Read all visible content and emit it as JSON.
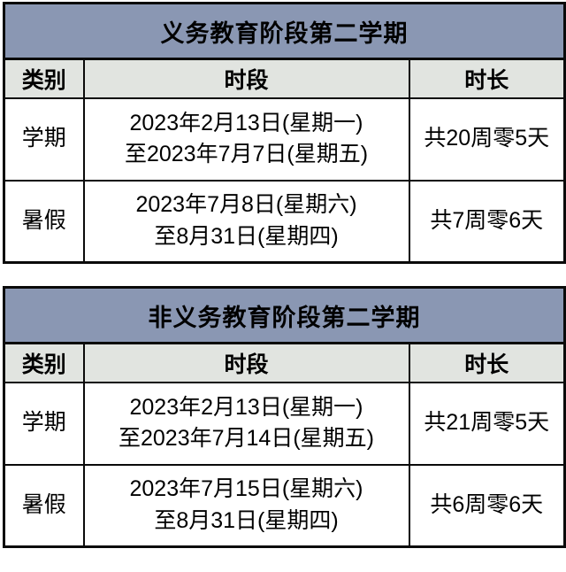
{
  "colors": {
    "title_bar_bg": "#8a97b3",
    "header_row_bg": "#e1e4e0",
    "body_bg": "#ffffff",
    "border": "#0a0a0a",
    "text": "#000000"
  },
  "tables": [
    {
      "title": "义务教育阶段第二学期",
      "columns": [
        "类别",
        "时段",
        "时长"
      ],
      "rows": [
        {
          "category": "学期",
          "period_line1": "2023年2月13日(星期一)",
          "period_line2": "至2023年7月7日(星期五)",
          "duration": "共20周零5天"
        },
        {
          "category": "暑假",
          "period_line1": "2023年7月8日(星期六)",
          "period_line2": "至8月31日(星期四)",
          "duration": "共7周零6天"
        }
      ]
    },
    {
      "title": "非义务教育阶段第二学期",
      "columns": [
        "类别",
        "时段",
        "时长"
      ],
      "rows": [
        {
          "category": "学期",
          "period_line1": "2023年2月13日(星期一)",
          "period_line2": "至2023年7月14日(星期五)",
          "duration": "共21周零5天"
        },
        {
          "category": "暑假",
          "period_line1": "2023年7月15日(星期六)",
          "period_line2": "至8月31日(星期四)",
          "duration": "共6周零6天"
        }
      ]
    }
  ]
}
